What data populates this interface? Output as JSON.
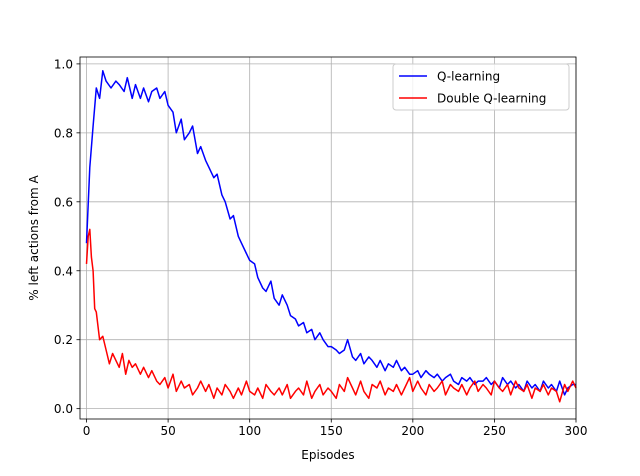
{
  "chart_data": {
    "type": "line",
    "title": "",
    "xlabel": "Episodes",
    "ylabel": "% left actions from A",
    "xlim": [
      -4,
      300
    ],
    "ylim": [
      -0.03,
      1.02
    ],
    "xticks": [
      0,
      50,
      100,
      150,
      200,
      250,
      300
    ],
    "yticks": [
      0.0,
      0.2,
      0.4,
      0.6,
      0.8,
      1.0
    ],
    "ytick_labels": [
      "0.0",
      "0.2",
      "0.4",
      "0.6",
      "0.8",
      "1.0"
    ],
    "grid": true,
    "legend_position": "top-right",
    "series": [
      {
        "name": "Q-learning",
        "color": "#0000ff",
        "x": [
          0,
          2,
          4,
          6,
          8,
          10,
          12,
          15,
          18,
          20,
          23,
          25,
          28,
          30,
          33,
          35,
          38,
          40,
          43,
          45,
          48,
          50,
          53,
          55,
          58,
          60,
          63,
          65,
          68,
          70,
          73,
          75,
          78,
          80,
          83,
          85,
          88,
          90,
          93,
          95,
          98,
          100,
          103,
          105,
          108,
          110,
          113,
          115,
          118,
          120,
          123,
          125,
          128,
          130,
          133,
          135,
          138,
          140,
          143,
          145,
          148,
          150,
          153,
          155,
          158,
          160,
          163,
          165,
          168,
          170,
          173,
          175,
          178,
          180,
          183,
          185,
          188,
          190,
          193,
          195,
          198,
          200,
          203,
          205,
          208,
          210,
          213,
          215,
          218,
          220,
          223,
          225,
          228,
          230,
          233,
          235,
          238,
          240,
          243,
          245,
          248,
          250,
          253,
          255,
          258,
          260,
          263,
          265,
          268,
          270,
          273,
          275,
          278,
          280,
          283,
          285,
          288,
          290,
          293,
          295,
          298,
          300
        ],
        "values": [
          0.48,
          0.7,
          0.82,
          0.93,
          0.9,
          0.98,
          0.95,
          0.93,
          0.95,
          0.94,
          0.92,
          0.96,
          0.9,
          0.94,
          0.9,
          0.93,
          0.89,
          0.92,
          0.93,
          0.9,
          0.92,
          0.88,
          0.86,
          0.8,
          0.84,
          0.78,
          0.8,
          0.82,
          0.74,
          0.76,
          0.72,
          0.7,
          0.67,
          0.68,
          0.62,
          0.6,
          0.55,
          0.56,
          0.5,
          0.48,
          0.45,
          0.43,
          0.42,
          0.38,
          0.35,
          0.34,
          0.37,
          0.32,
          0.3,
          0.33,
          0.3,
          0.27,
          0.26,
          0.24,
          0.25,
          0.22,
          0.23,
          0.2,
          0.22,
          0.2,
          0.18,
          0.18,
          0.17,
          0.16,
          0.17,
          0.2,
          0.15,
          0.14,
          0.16,
          0.13,
          0.15,
          0.14,
          0.12,
          0.14,
          0.11,
          0.13,
          0.12,
          0.14,
          0.11,
          0.12,
          0.1,
          0.1,
          0.11,
          0.09,
          0.11,
          0.1,
          0.09,
          0.1,
          0.08,
          0.09,
          0.1,
          0.08,
          0.07,
          0.09,
          0.08,
          0.09,
          0.07,
          0.08,
          0.08,
          0.09,
          0.07,
          0.08,
          0.06,
          0.09,
          0.07,
          0.08,
          0.06,
          0.07,
          0.05,
          0.08,
          0.06,
          0.07,
          0.05,
          0.08,
          0.06,
          0.07,
          0.05,
          0.08,
          0.04,
          0.06,
          0.07,
          0.07
        ]
      },
      {
        "name": "Double Q-learning",
        "color": "#ff0000",
        "x": [
          0,
          1,
          2,
          3,
          4,
          5,
          6,
          8,
          10,
          12,
          14,
          16,
          18,
          20,
          22,
          24,
          26,
          28,
          30,
          33,
          35,
          38,
          40,
          43,
          45,
          48,
          50,
          53,
          55,
          58,
          60,
          63,
          65,
          68,
          70,
          73,
          75,
          78,
          80,
          83,
          85,
          88,
          90,
          93,
          95,
          98,
          100,
          103,
          105,
          108,
          110,
          113,
          115,
          118,
          120,
          123,
          125,
          128,
          130,
          133,
          135,
          138,
          140,
          143,
          145,
          148,
          150,
          153,
          155,
          158,
          160,
          163,
          165,
          168,
          170,
          173,
          175,
          178,
          180,
          183,
          185,
          188,
          190,
          193,
          195,
          198,
          200,
          203,
          205,
          208,
          210,
          213,
          215,
          218,
          220,
          223,
          225,
          228,
          230,
          233,
          235,
          238,
          240,
          243,
          245,
          248,
          250,
          253,
          255,
          258,
          260,
          263,
          265,
          268,
          270,
          273,
          275,
          278,
          280,
          283,
          285,
          288,
          290,
          293,
          295,
          298,
          300
        ],
        "values": [
          0.42,
          0.5,
          0.52,
          0.44,
          0.4,
          0.29,
          0.28,
          0.2,
          0.21,
          0.17,
          0.13,
          0.16,
          0.14,
          0.12,
          0.16,
          0.1,
          0.14,
          0.12,
          0.13,
          0.1,
          0.12,
          0.09,
          0.11,
          0.08,
          0.07,
          0.09,
          0.06,
          0.1,
          0.05,
          0.08,
          0.06,
          0.07,
          0.04,
          0.06,
          0.08,
          0.05,
          0.07,
          0.03,
          0.06,
          0.04,
          0.07,
          0.05,
          0.03,
          0.06,
          0.04,
          0.08,
          0.05,
          0.04,
          0.06,
          0.03,
          0.07,
          0.05,
          0.04,
          0.06,
          0.04,
          0.07,
          0.03,
          0.05,
          0.06,
          0.04,
          0.08,
          0.03,
          0.05,
          0.07,
          0.04,
          0.06,
          0.05,
          0.03,
          0.07,
          0.05,
          0.09,
          0.06,
          0.04,
          0.08,
          0.05,
          0.03,
          0.07,
          0.06,
          0.08,
          0.04,
          0.06,
          0.05,
          0.07,
          0.04,
          0.06,
          0.09,
          0.05,
          0.08,
          0.06,
          0.04,
          0.07,
          0.05,
          0.06,
          0.08,
          0.04,
          0.07,
          0.06,
          0.05,
          0.07,
          0.04,
          0.06,
          0.08,
          0.05,
          0.07,
          0.06,
          0.04,
          0.08,
          0.06,
          0.05,
          0.07,
          0.04,
          0.08,
          0.06,
          0.05,
          0.07,
          0.03,
          0.06,
          0.05,
          0.07,
          0.04,
          0.06,
          0.05,
          0.02,
          0.07,
          0.05,
          0.08,
          0.06
        ]
      }
    ]
  }
}
